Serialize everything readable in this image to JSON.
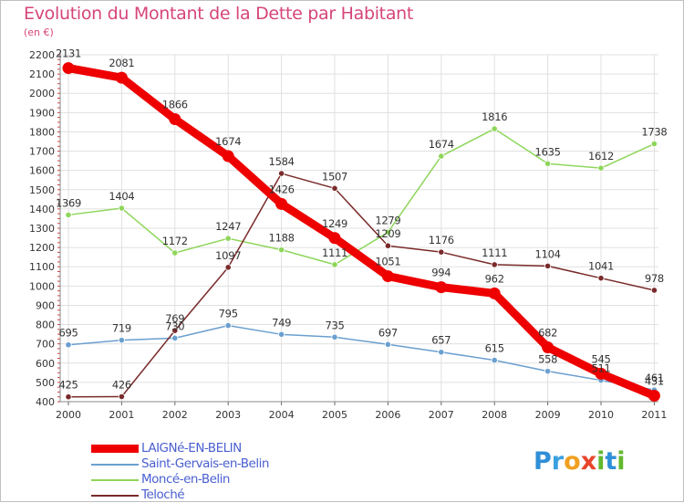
{
  "title": "Evolution du Montant de la Dette par Habitant",
  "subtitle": "(en €)",
  "logo": {
    "letters": [
      {
        "ch": "P",
        "color": "#2f8fd8"
      },
      {
        "ch": "r",
        "color": "#3aa0e0"
      },
      {
        "ch": "o",
        "color": "#f0a020"
      },
      {
        "ch": "x",
        "color": "#e8452c"
      },
      {
        "ch": "i",
        "color": "#62b82e"
      },
      {
        "ch": "t",
        "color": "#2f8fd8"
      },
      {
        "ch": "i",
        "color": "#62b82e"
      }
    ]
  },
  "chart_data": {
    "type": "line",
    "title": "Evolution du Montant de la Dette par Habitant",
    "ylabel": "(en €)",
    "x": [
      "2000",
      "2001",
      "2002",
      "2003",
      "2004",
      "2005",
      "2006",
      "2007",
      "2008",
      "2009",
      "2010",
      "2011"
    ],
    "ylim": [
      400,
      2200
    ],
    "yticks": [
      400,
      500,
      600,
      700,
      800,
      900,
      1000,
      1100,
      1200,
      1300,
      1400,
      1500,
      1600,
      1700,
      1800,
      1900,
      2000,
      2100,
      2200
    ],
    "grid": true,
    "legend_position": "bottom-left",
    "series": [
      {
        "name": "LAIGNé-EN-BELIN",
        "color": "#ee0000",
        "emphasis": true,
        "values": [
          2131,
          2081,
          1866,
          1674,
          1426,
          1249,
          1051,
          994,
          962,
          682,
          545,
          431
        ],
        "labels": [
          "2131",
          "2081",
          "1866",
          "1674",
          "1426",
          "1249",
          "1051",
          "994",
          "962",
          "682",
          "545",
          "431"
        ]
      },
      {
        "name": "Saint-Gervais-en-Belin",
        "color": "#6a9fcf",
        "emphasis": false,
        "values": [
          695,
          719,
          730,
          795,
          749,
          735,
          697,
          657,
          615,
          558,
          511,
          461
        ],
        "labels": [
          "695",
          "719",
          "730",
          "795",
          "749",
          "735",
          "697",
          "657",
          "615",
          "558",
          "511",
          "461"
        ]
      },
      {
        "name": "Moncé-en-Belin",
        "color": "#8ed65a",
        "emphasis": false,
        "values": [
          1369,
          1404,
          1172,
          1247,
          1188,
          1111,
          1279,
          1674,
          1816,
          1635,
          1612,
          1738
        ],
        "labels": [
          "1369",
          "1404",
          "1172",
          "1247",
          "1188",
          "1111",
          "1279",
          "1674",
          "1816",
          "1635",
          "1612",
          "1738"
        ]
      },
      {
        "name": "Teloché",
        "color": "#7a2a2a",
        "emphasis": false,
        "values": [
          425,
          426,
          769,
          1097,
          1584,
          1507,
          1209,
          1176,
          1111,
          1104,
          1041,
          978
        ],
        "labels": [
          "425",
          "426",
          "769",
          "1097",
          "1584",
          "1507",
          "1209",
          "1176",
          "1111",
          "1104",
          "1041",
          "978"
        ]
      }
    ]
  }
}
